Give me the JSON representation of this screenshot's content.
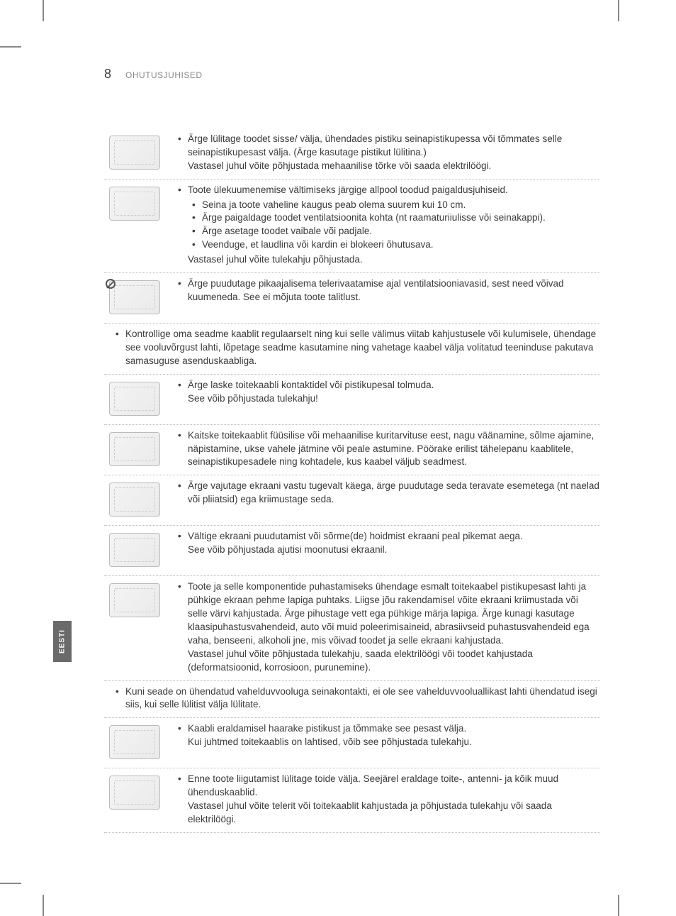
{
  "page_number": "8",
  "section_title": "OHUTUSJUHISED",
  "side_tab": "EESTI",
  "entries": [
    {
      "type": "icon",
      "bullets": [
        {
          "text": "Ärge lülitage toodet sisse/ välja, ühendades pistiku seinapistikupessa või tõmmates selle seinapistikupesast välja. (Ärge kasutage pistikut lülitina.)",
          "cons": "Vastasel juhul võite põhjustada mehaanilise tõrke või saada elektrilöögi."
        }
      ]
    },
    {
      "type": "icon",
      "bullets": [
        {
          "text": "Toote ülekuumenemise vältimiseks järgige allpool toodud paigaldusjuhiseid.",
          "subs": [
            "Seina ja toote vaheline kaugus peab olema suurem kui 10 cm.",
            "Ärge paigaldage toodet ventilatsioonita kohta (nt raamaturiiulisse või seinakappi).",
            "Ärge asetage toodet vaibale või padjale.",
            "Veenduge, et laudlina või kardin ei blokeeri õhutusava."
          ],
          "cons": "Vastasel juhul võite tulekahju põhjustada."
        }
      ]
    },
    {
      "type": "icon",
      "prohibit": true,
      "bullets": [
        {
          "text": "Ärge puudutage pikaajalisema telerivaatamise ajal ventilatsiooniavasid, sest need võivad kuumeneda. See ei mõjuta toote talitlust."
        }
      ]
    },
    {
      "type": "noimg",
      "bullets": [
        {
          "text": "Kontrollige oma seadme kaablit regulaarselt ning kui selle välimus viitab kahjustusele või kulumisele, ühendage see vooluvõrgust lahti, lõpetage seadme kasutamine ning vahetage kaabel välja volitatud teeninduse pakutava samasuguse asenduskaabliga."
        }
      ]
    },
    {
      "type": "icon",
      "bullets": [
        {
          "text": "Ärge laske toitekaabli kontaktidel või pistikupesal tolmuda.",
          "cons": "See võib põhjustada tulekahju!"
        }
      ]
    },
    {
      "type": "icon",
      "bullets": [
        {
          "text": "Kaitske toitekaablit füüsilise või mehaanilise kuritarvituse eest, nagu väänamine, sõlme ajamine, näpistamine, ukse vahele jätmine või peale astumine. Pöörake erilist tähelepanu kaablitele, seinapistikupesadele ning kohtadele, kus kaabel väljub seadmest."
        }
      ]
    },
    {
      "type": "icon",
      "bullets": [
        {
          "text": "Ärge vajutage ekraani vastu tugevalt käega, ärge puudutage seda teravate esemetega (nt naelad või pliiatsid) ega kriimustage seda."
        }
      ]
    },
    {
      "type": "icon",
      "bullets": [
        {
          "text": "Vältige ekraani puudutamist või sõrme(de) hoidmist ekraani peal pikemat aega.",
          "cons": "See võib põhjustada ajutisi moonutusi ekraanil."
        }
      ]
    },
    {
      "type": "icon",
      "bullets": [
        {
          "text": "Toote ja selle komponentide puhastamiseks ühendage esmalt toitekaabel pistikupesast lahti ja pühkige ekraan pehme lapiga puhtaks. Liigse jõu rakendamisel võite ekraani kriimustada või selle värvi kahjustada. Ärge pihustage vett ega pühkige märja lapiga. Ärge kunagi kasutage klaasipuhastusvahendeid, auto või muid poleerimisaineid, abrasiivseid puhastusvahendeid ega vaha, benseeni, alkoholi jne, mis võivad toodet ja selle ekraani kahjustada.",
          "cons": "Vastasel juhul võite põhjustada tulekahju, saada elektrilöögi või toodet kahjustada (deformatsioonid, korrosioon, purunemine)."
        }
      ]
    },
    {
      "type": "noimg",
      "bullets": [
        {
          "text": "Kuni seade on ühendatud vahelduvvooluga seinakontakti, ei ole see vahelduvvooluallikast lahti ühendatud isegi siis, kui selle lülitist välja lülitate."
        }
      ]
    },
    {
      "type": "icon",
      "bullets": [
        {
          "text": "Kaabli eraldamisel haarake pistikust ja tõmmake see pesast välja.",
          "cons": "Kui juhtmed toitekaablis on lahtised, võib see põhjustada tulekahju."
        }
      ]
    },
    {
      "type": "icon",
      "bullets": [
        {
          "text": "Enne toote liigutamist lülitage toide välja. Seejärel eraldage toite-, antenni- ja kõik muud ühenduskaablid.",
          "cons": "Vastasel juhul võite telerit või toitekaablit kahjustada ja põhjustada tulekahju või saada elektrilöögi."
        }
      ]
    }
  ]
}
